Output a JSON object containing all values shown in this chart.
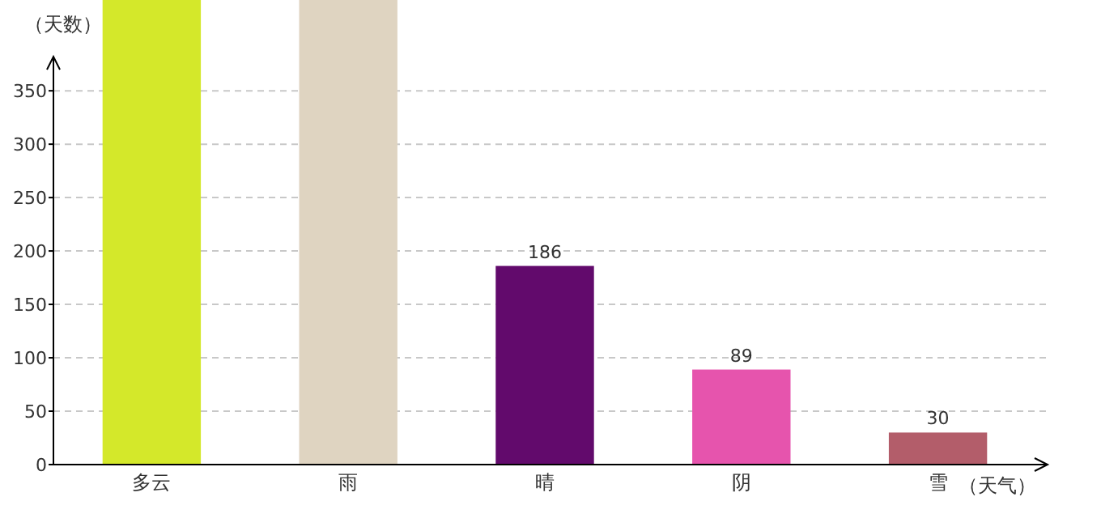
{
  "chart_data": {
    "type": "bar",
    "ylabel": "（天数）",
    "xlabel": "（天气）",
    "categories": [
      "多云",
      "雨",
      "晴",
      "阴",
      "雪"
    ],
    "values": [
      435,
      435,
      186,
      89,
      30
    ],
    "colors": [
      "#d4e82a",
      "#dfd4c1",
      "#620a6c",
      "#e654ad",
      "#b35d6a"
    ],
    "value_labels": [
      null,
      null,
      "186",
      "89",
      "30"
    ],
    "ylim": [
      0,
      435
    ],
    "yticks": [
      0,
      50,
      100,
      150,
      200,
      250,
      300,
      350
    ],
    "grid": "y"
  }
}
